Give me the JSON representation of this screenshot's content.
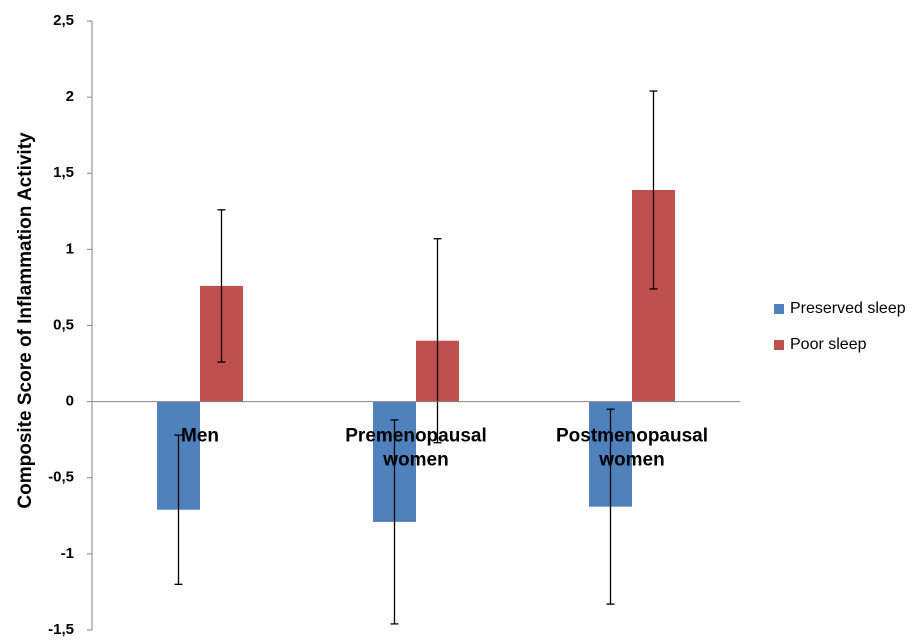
{
  "chart_data": {
    "type": "bar",
    "title": "",
    "xlabel": "",
    "ylabel": "Composite  Score of  Inflammation Activity",
    "ylim": [
      -1.5,
      2.5
    ],
    "yticks": [
      2.5,
      2,
      1.5,
      1,
      0.5,
      0,
      -0.5,
      -1,
      -1.5
    ],
    "ytick_labels": [
      "2,5",
      "2",
      "1,5",
      "1",
      "0,5",
      "0",
      "-0,5",
      "-1",
      "-1,5"
    ],
    "categories": [
      [
        "Men"
      ],
      [
        "Premenopausal",
        "women"
      ],
      [
        "Postmenopausal",
        "women"
      ]
    ],
    "series": [
      {
        "name": "Preserved sleep",
        "color": "#4F81BD",
        "values": [
          -0.71,
          -0.79,
          -0.69
        ],
        "error": [
          0.49,
          0.67,
          0.64
        ]
      },
      {
        "name": "Poor sleep",
        "color": "#C0504D",
        "values": [
          0.76,
          0.4,
          1.39
        ],
        "error": [
          0.5,
          0.67,
          0.65
        ]
      }
    ],
    "grid": false,
    "legend_position": "right",
    "error_bars": true
  }
}
